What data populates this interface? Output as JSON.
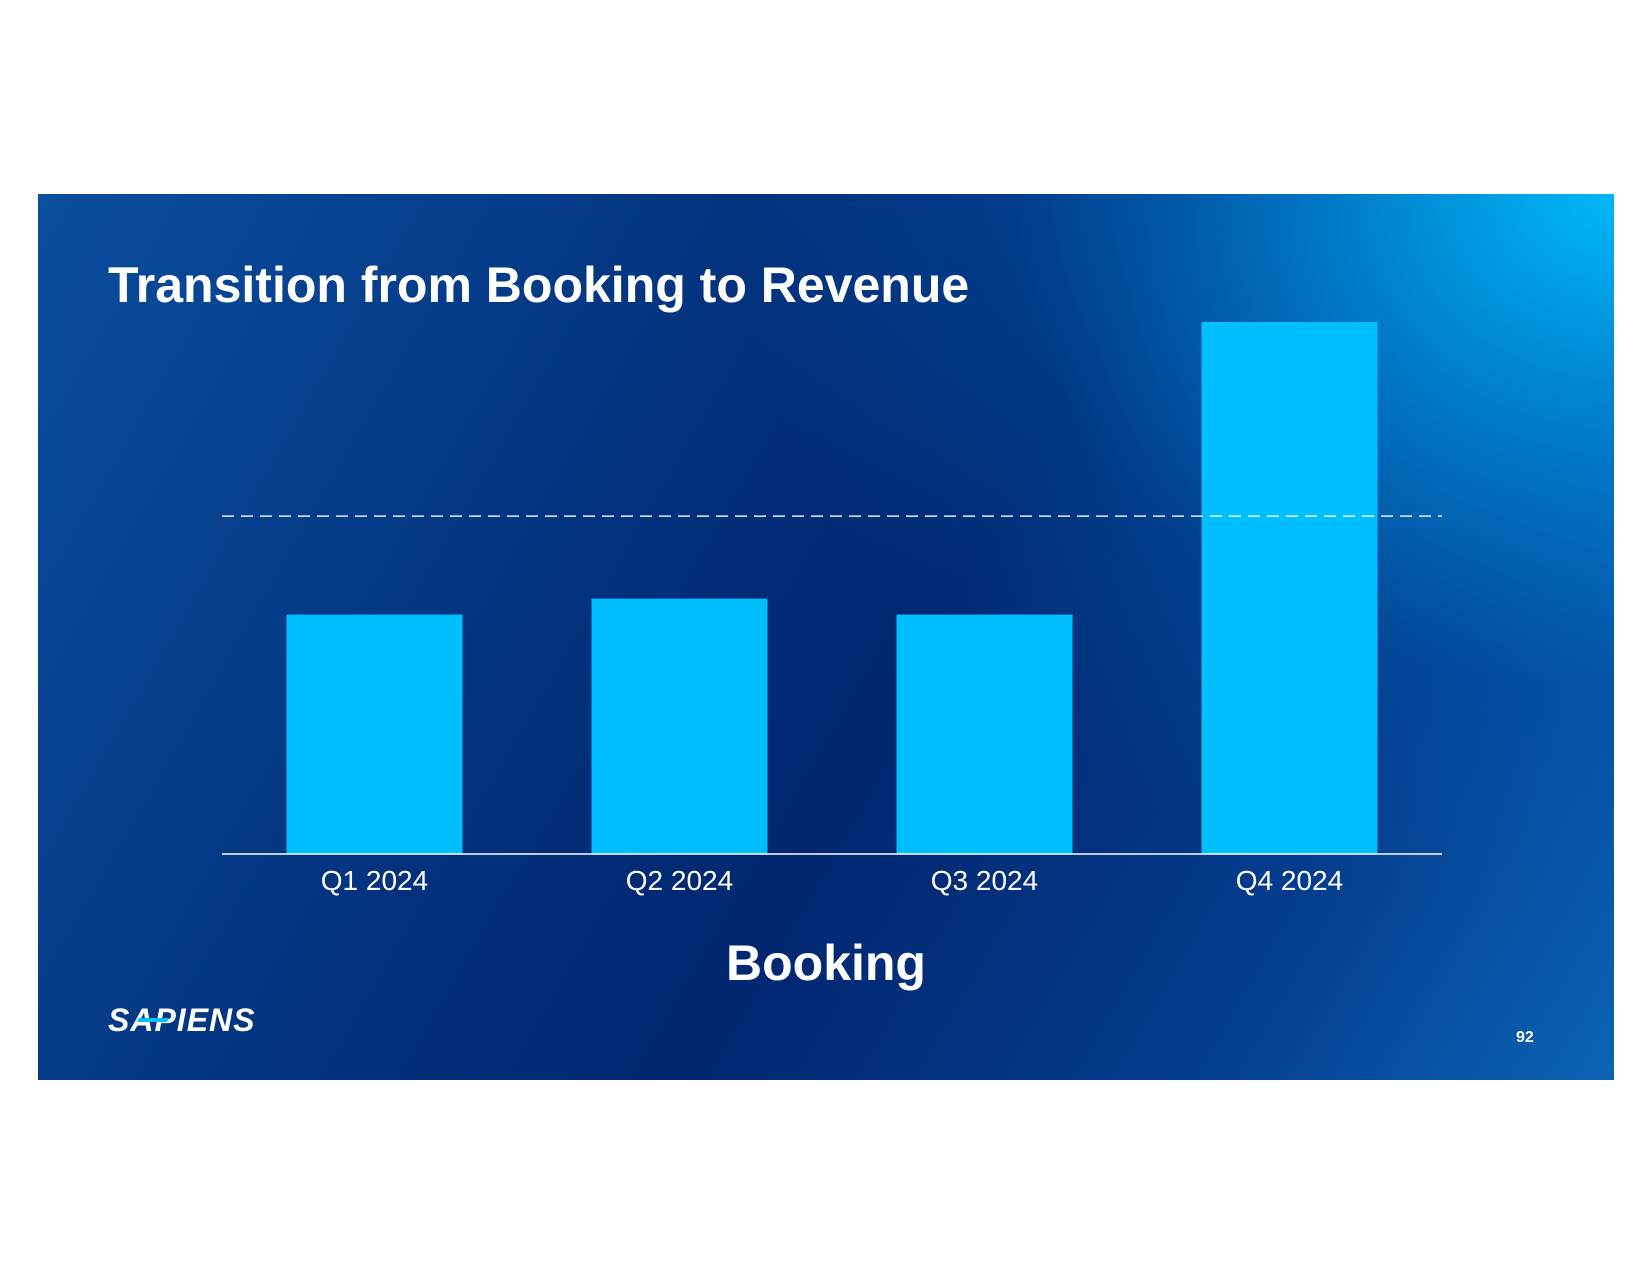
{
  "slide": {
    "title": "Transition from Booking to Revenue",
    "caption": "Booking",
    "logo_text": "SAPIENS",
    "page_number": "92"
  },
  "colors": {
    "bar": "#00bfff",
    "reference_line": "#ffffff",
    "axis": "#ffffff",
    "logo_accent": "#00bfff"
  },
  "chart_data": {
    "type": "bar",
    "categories": [
      "Q1 2024",
      "Q2 2024",
      "Q3 2024",
      "Q4 2024"
    ],
    "values": [
      45,
      48,
      45,
      100
    ],
    "reference_line": {
      "value": 63.5,
      "style": "dashed"
    },
    "title": "",
    "xlabel": "Booking",
    "ylabel": "",
    "ylim": [
      0,
      100
    ],
    "grid": false,
    "legend": "none"
  }
}
